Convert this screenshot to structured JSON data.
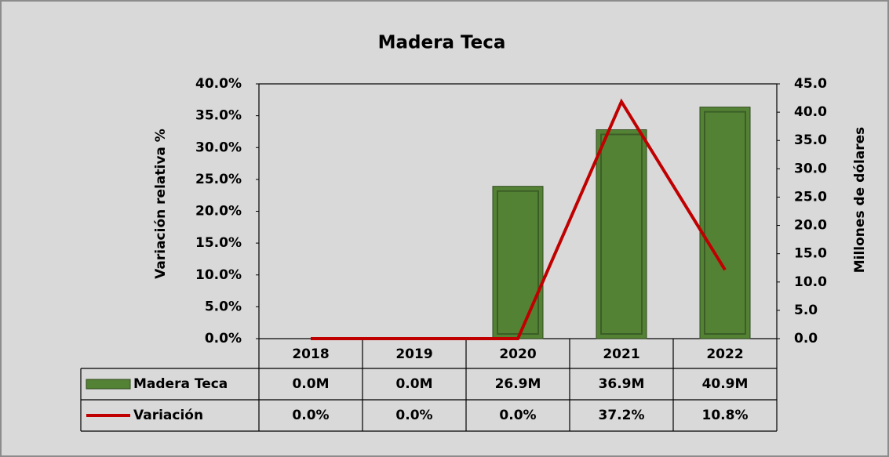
{
  "chart_data": {
    "type": "bar",
    "title": "Madera Teca",
    "y_label": "Variación relativa %",
    "y2_label": "Millones de dólares",
    "categories": [
      "2018",
      "2019",
      "2020",
      "2021",
      "2022"
    ],
    "series": [
      {
        "name": "Madera Teca",
        "type": "bar",
        "axis": "y2",
        "color": "#548235",
        "values": [
          0,
          0,
          26.9,
          36.9,
          40.9
        ],
        "value_labels": [
          "0.0M",
          "0.0M",
          "26.9M",
          "36.9M",
          "40.9M"
        ]
      },
      {
        "name": "Variación",
        "type": "line",
        "color": "#c00000",
        "values": [
          0,
          0,
          0,
          37.2,
          10.8
        ],
        "value_labels": [
          "0.0%",
          "0.0%",
          "0.0%",
          "37.2%",
          "10.8%"
        ]
      }
    ],
    "ylim": [
      0,
      40
    ],
    "yticks": [
      {
        "value": 0,
        "label": "0.0%"
      },
      {
        "value": 5,
        "label": "5.0%"
      },
      {
        "value": 10,
        "label": "10.0%"
      },
      {
        "value": 15,
        "label": "15.0%"
      },
      {
        "value": 20,
        "label": "20.0%"
      },
      {
        "value": 25,
        "label": "25.0%"
      },
      {
        "value": 30,
        "label": "30.0%"
      },
      {
        "value": 35,
        "label": "35.0%"
      },
      {
        "value": 40,
        "label": "40.0%"
      }
    ],
    "y2lim": [
      0,
      45
    ],
    "y2ticks": [
      {
        "value": 0,
        "label": "0.0"
      },
      {
        "value": 5,
        "label": "5.0"
      },
      {
        "value": 10,
        "label": "10.0"
      },
      {
        "value": 15,
        "label": "15.0"
      },
      {
        "value": 20,
        "label": "20.0"
      },
      {
        "value": 25,
        "label": "25.0"
      },
      {
        "value": 30,
        "label": "30.0"
      },
      {
        "value": 35,
        "label": "35.0"
      },
      {
        "value": 40,
        "label": "40.0"
      },
      {
        "value": 45,
        "label": "45.0"
      }
    ]
  }
}
